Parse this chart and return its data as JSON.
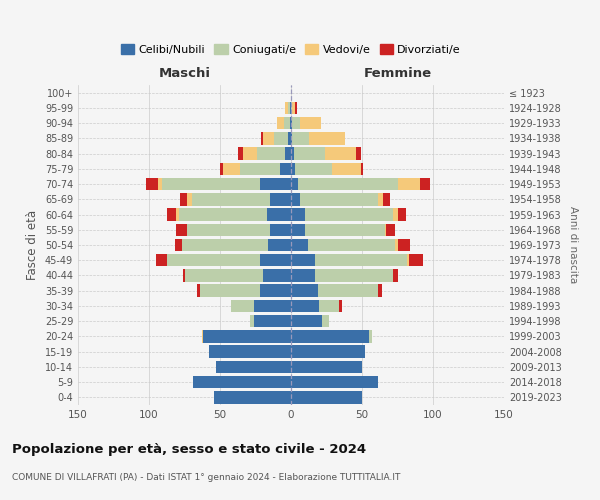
{
  "age_groups": [
    "0-4",
    "5-9",
    "10-14",
    "15-19",
    "20-24",
    "25-29",
    "30-34",
    "35-39",
    "40-44",
    "45-49",
    "50-54",
    "55-59",
    "60-64",
    "65-69",
    "70-74",
    "75-79",
    "80-84",
    "85-89",
    "90-94",
    "95-99",
    "100+"
  ],
  "birth_years": [
    "2019-2023",
    "2014-2018",
    "2009-2013",
    "2004-2008",
    "1999-2003",
    "1994-1998",
    "1989-1993",
    "1984-1988",
    "1979-1983",
    "1974-1978",
    "1969-1973",
    "1964-1968",
    "1959-1963",
    "1954-1958",
    "1949-1953",
    "1944-1948",
    "1939-1943",
    "1934-1938",
    "1929-1933",
    "1924-1928",
    "≤ 1923"
  ],
  "colors": {
    "celibe": "#3a6fa8",
    "coniugato": "#bccfaa",
    "vedovo": "#f5c97a",
    "divorziato": "#cc2222"
  },
  "maschi": {
    "celibe": [
      54,
      69,
      53,
      58,
      62,
      26,
      26,
      22,
      20,
      22,
      16,
      15,
      17,
      15,
      22,
      8,
      4,
      2,
      1,
      1,
      0
    ],
    "coniugato": [
      0,
      0,
      0,
      0,
      0,
      3,
      16,
      42,
      55,
      65,
      61,
      58,
      62,
      55,
      69,
      28,
      20,
      10,
      4,
      1,
      0
    ],
    "vedovo": [
      0,
      0,
      0,
      0,
      1,
      0,
      0,
      0,
      0,
      0,
      0,
      0,
      2,
      3,
      3,
      12,
      10,
      8,
      5,
      2,
      0
    ],
    "divorziato": [
      0,
      0,
      0,
      0,
      0,
      0,
      0,
      2,
      1,
      8,
      5,
      8,
      6,
      5,
      8,
      2,
      3,
      1,
      0,
      0,
      0
    ]
  },
  "femmine": {
    "nubile": [
      50,
      61,
      50,
      52,
      55,
      22,
      20,
      19,
      17,
      17,
      12,
      10,
      10,
      6,
      5,
      3,
      2,
      1,
      1,
      0,
      0
    ],
    "coniugata": [
      0,
      0,
      0,
      0,
      2,
      5,
      14,
      42,
      55,
      65,
      61,
      56,
      62,
      55,
      70,
      26,
      22,
      12,
      5,
      1,
      0
    ],
    "vedova": [
      0,
      0,
      0,
      0,
      0,
      0,
      0,
      0,
      0,
      1,
      2,
      1,
      3,
      4,
      16,
      20,
      22,
      25,
      15,
      2,
      0
    ],
    "divorziata": [
      0,
      0,
      0,
      0,
      0,
      0,
      2,
      3,
      3,
      10,
      9,
      6,
      6,
      5,
      7,
      2,
      3,
      0,
      0,
      1,
      0
    ]
  },
  "xlim": 150,
  "title": "Popolazione per età, sesso e stato civile - 2024",
  "subtitle": "COMUNE DI VILLAFRATI (PA) - Dati ISTAT 1° gennaio 2024 - Elaborazione TUTTITALIA.IT",
  "xlabel_left": "Maschi",
  "xlabel_right": "Femmine",
  "ylabel": "Fasce di età",
  "ylabel_right": "Anni di nascita",
  "bg_color": "#f5f5f5",
  "grid_color": "#cccccc",
  "legend_labels": [
    "Celibi/Nubili",
    "Coniugati/e",
    "Vedovi/e",
    "Divorziati/e"
  ]
}
